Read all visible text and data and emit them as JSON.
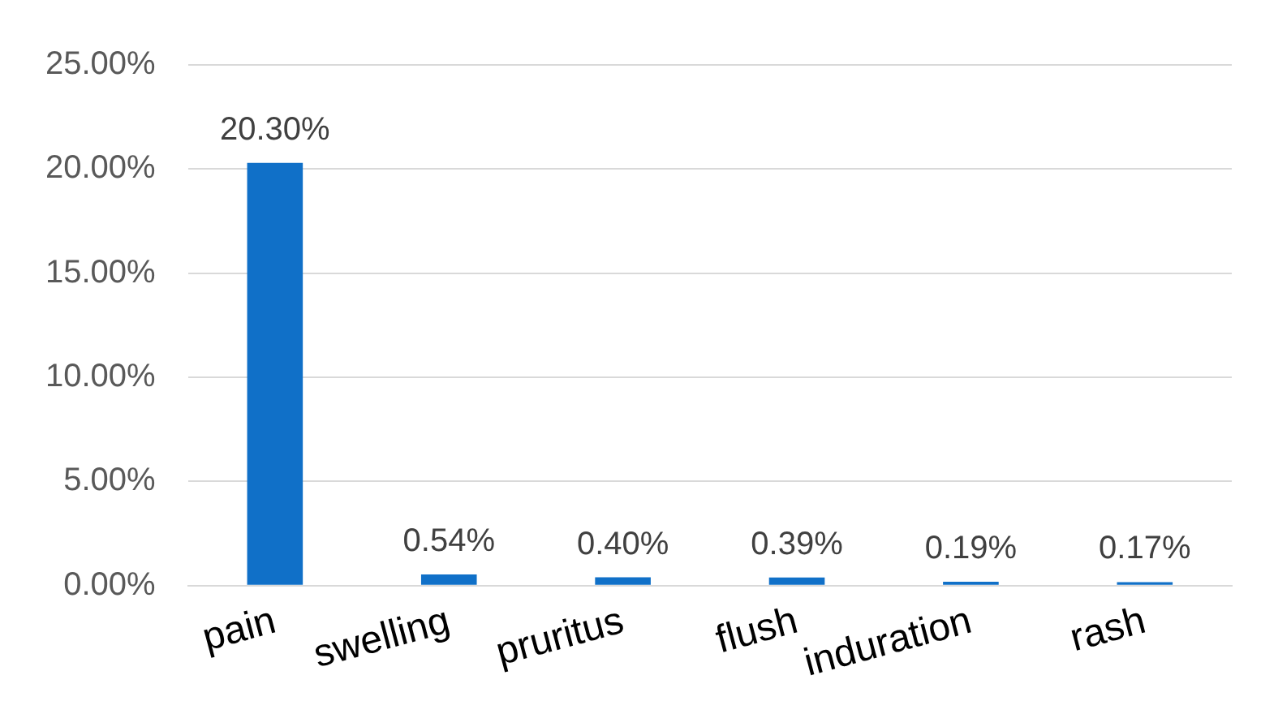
{
  "chart_data": {
    "type": "bar",
    "categories": [
      "pain",
      "swelling",
      "pruritus",
      "flush",
      "induration",
      "rash"
    ],
    "values": [
      20.3,
      0.54,
      0.4,
      0.39,
      0.19,
      0.17
    ],
    "value_labels": [
      "20.30%",
      "0.54%",
      "0.40%",
      "0.39%",
      "0.19%",
      "0.17%"
    ],
    "color": "#1070c8",
    "ylim": [
      0,
      25
    ],
    "yticks": [
      {
        "value": 0,
        "label": "0.00%"
      },
      {
        "value": 5,
        "label": "5.00%"
      },
      {
        "value": 10,
        "label": "10.00%"
      },
      {
        "value": 15,
        "label": "15.00%"
      },
      {
        "value": 20,
        "label": "20.00%"
      },
      {
        "value": 25,
        "label": "25.00%"
      }
    ],
    "grid": "y",
    "legend": false
  }
}
